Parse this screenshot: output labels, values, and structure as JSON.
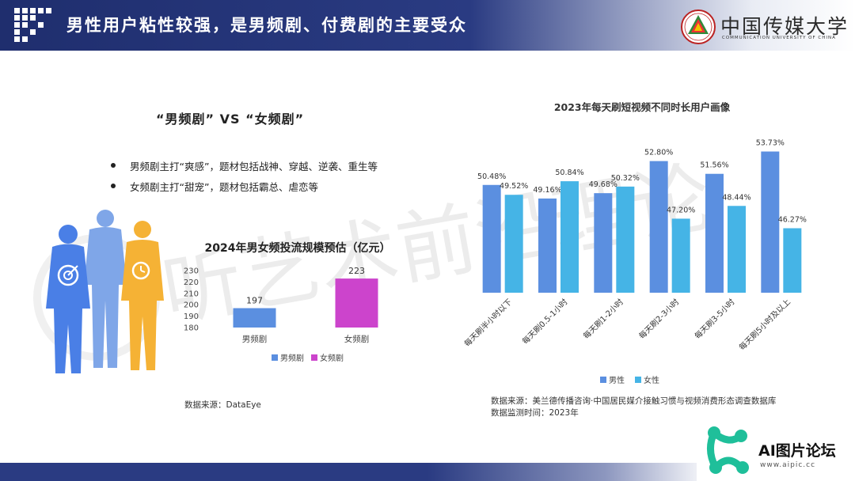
{
  "header": {
    "title": "男性用户粘性较强，是男频剧、付费剧的主要受众"
  },
  "logo": {
    "name_zh": "中国传媒大学",
    "name_en": "COMMUNICATION UNIVERSITY OF CHINA"
  },
  "watermark": {
    "text": "听艺术前沿理论"
  },
  "comparison": {
    "title": "“男频剧”  VS  “女频剧”",
    "bullets": [
      "男频剧主打“爽感”，题材包括战神、穿越、逆袭、重生等",
      "女频剧主打“甜宠”，题材包括霸总、虐恋等"
    ]
  },
  "sources": {
    "left": "数据来源：DataEye",
    "right_line1": "数据来源：美兰德传播咨询·中国居民媒介接触习惯与视频消费形态调查数据库",
    "right_line2": "数据监测时间：2023年"
  },
  "badge": {
    "name": "AI图片论坛",
    "url": "www.aipic.cc"
  },
  "chart_data": [
    {
      "type": "bar",
      "title": "2024年男女频投流规模预估（亿元）",
      "categories": [
        "男频剧",
        "女频剧"
      ],
      "series": [
        {
          "name": "男频剧",
          "values": [
            197,
            null
          ],
          "color": "#5b8fe0"
        },
        {
          "name": "女频剧",
          "values": [
            null,
            223
          ],
          "color": "#cc44cc"
        }
      ],
      "data_labels": [
        "197",
        "223"
      ],
      "ylim": [
        180,
        230
      ],
      "yticks": [
        180,
        190,
        200,
        210,
        220,
        230
      ],
      "legend": "bottom",
      "grid": false
    },
    {
      "type": "bar",
      "title": "2023年每天刷短视频不同时长用户画像",
      "categories": [
        "每天刷半小时以下",
        "每天刷0.5-1小时",
        "每天刷1-2小时",
        "每天刷2-3小时",
        "每天刷3-5小时",
        "每天刷5小时及以上"
      ],
      "series": [
        {
          "name": "男性",
          "values": [
            50.48,
            49.16,
            49.68,
            52.8,
            51.56,
            53.73
          ],
          "labels": [
            "50.48%",
            "49.16%",
            "49.68%",
            "52.80%",
            "51.56%",
            "53.73%"
          ],
          "color": "#5b8fe0"
        },
        {
          "name": "女性",
          "values": [
            49.52,
            50.84,
            50.32,
            47.2,
            48.44,
            46.27
          ],
          "labels": [
            "49.52%",
            "50.84%",
            "50.32%",
            "47.20%",
            "48.44%",
            "46.27%"
          ],
          "color": "#45b4e6"
        }
      ],
      "ylim": [
        40,
        55
      ],
      "legend": "bottom",
      "grid": false
    }
  ]
}
